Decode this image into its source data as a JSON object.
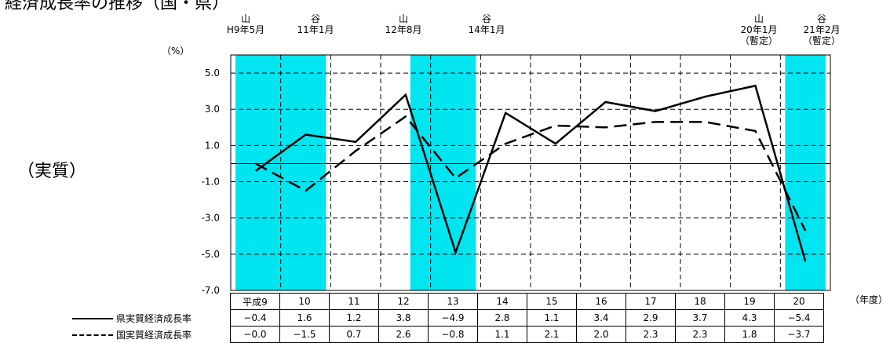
{
  "title": "経済成長率の推移（国・県）",
  "side_label": "（実質）",
  "y_unit": "（%）",
  "x_unit": "（年度）",
  "events": [
    {
      "kind": "山",
      "date": "H9年5月",
      "note": ""
    },
    {
      "kind": "谷",
      "date": "11年1月",
      "note": ""
    },
    {
      "kind": "山",
      "date": "12年8月",
      "note": ""
    },
    {
      "kind": "谷",
      "date": "14年1月",
      "note": ""
    },
    {
      "kind": "山",
      "date": "20年1月",
      "note": "（暫定）"
    },
    {
      "kind": "谷",
      "date": "21年2月",
      "note": "（暫定）"
    }
  ],
  "colors": {
    "shade": "#00e5f0",
    "line": "#000000"
  },
  "chart_data": {
    "type": "line",
    "categories": [
      "平成9",
      "10",
      "11",
      "12",
      "13",
      "14",
      "15",
      "16",
      "17",
      "18",
      "19",
      "20"
    ],
    "series": [
      {
        "name": "県実質経済成長率",
        "style": "solid",
        "values": [
          -0.4,
          1.6,
          1.2,
          3.8,
          -4.9,
          2.8,
          1.1,
          3.4,
          2.9,
          3.7,
          4.3,
          -5.4
        ],
        "labels": [
          "−0.4",
          "1.6",
          "1.2",
          "3.8",
          "−4.9",
          "2.8",
          "1.1",
          "3.4",
          "2.9",
          "3.7",
          "4.3",
          "−5.4"
        ]
      },
      {
        "name": "国実質経済成長率",
        "style": "dashed",
        "values": [
          -0.0,
          -1.5,
          0.7,
          2.6,
          -0.8,
          1.1,
          2.1,
          2.0,
          2.3,
          2.3,
          1.8,
          -3.7
        ],
        "labels": [
          "−0.0",
          "−1.5",
          "0.7",
          "2.6",
          "−0.8",
          "1.1",
          "2.1",
          "2.0",
          "2.3",
          "2.3",
          "1.8",
          "−3.7"
        ]
      }
    ],
    "ylim": [
      -7.0,
      6.0
    ],
    "yticks": [
      5.0,
      3.0,
      1.0,
      -1.0,
      -3.0,
      -5.0,
      -7.0
    ],
    "ytick_labels": [
      "5.0",
      "3.0",
      "1.0",
      "-1.0",
      "-3.0",
      "-5.0",
      "-7.0"
    ],
    "shaded_ranges": [
      [
        -0.5,
        1.5
      ],
      [
        3.0,
        4.5
      ],
      [
        10.5,
        11.5
      ]
    ],
    "grid": "dashed",
    "legend": "table-below"
  }
}
